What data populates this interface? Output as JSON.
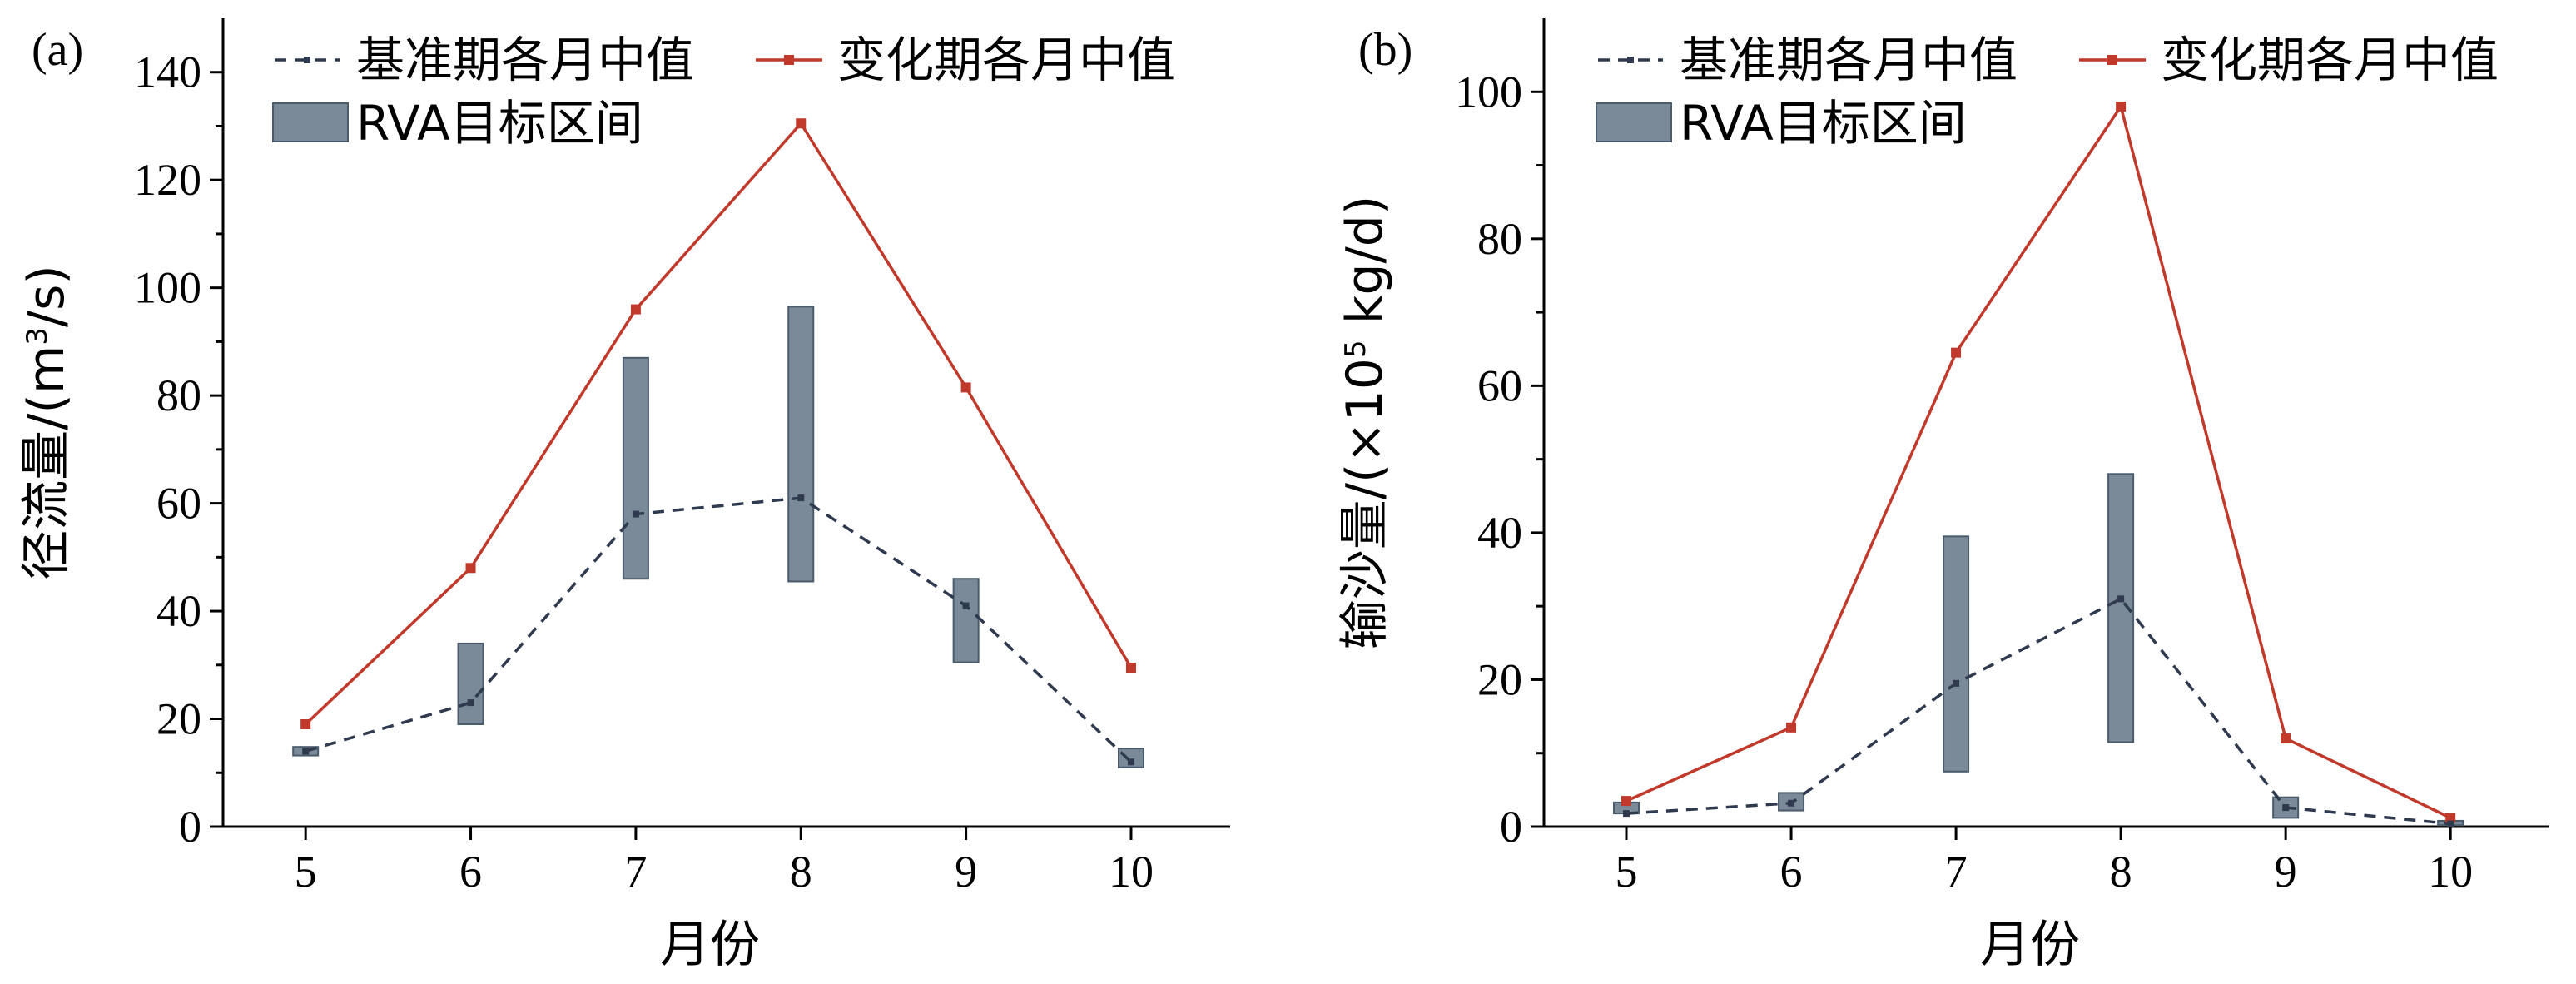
{
  "chart_data": [
    {
      "panel_label": "(a)",
      "type": "line",
      "xlabel": "月份",
      "ylabel": "径流量/(m³/s)",
      "ylabel_parts": [
        "径流量/(m",
        "3",
        "/s)"
      ],
      "x": [
        5,
        6,
        7,
        8,
        9,
        10
      ],
      "ylim": [
        0,
        150
      ],
      "yticks": [
        0,
        20,
        40,
        60,
        80,
        100,
        120,
        140
      ],
      "legend": {
        "baseline": "基准期各月中值",
        "changed": "变化期各月中值",
        "rva": "RVA目标区间"
      },
      "series": [
        {
          "name": "基准期各月中值",
          "values": [
            14,
            23,
            58,
            61,
            41,
            12
          ],
          "color": "#2f3a4f",
          "style": "dashed"
        },
        {
          "name": "变化期各月中值",
          "values": [
            19,
            48,
            96,
            130.5,
            81.5,
            29.5
          ],
          "color": "#c0392b",
          "style": "solid"
        }
      ],
      "rva_range": [
        [
          13.2,
          14.8
        ],
        [
          19,
          34
        ],
        [
          46,
          87
        ],
        [
          45.5,
          96.5
        ],
        [
          30.5,
          46
        ],
        [
          11,
          14.5
        ]
      ]
    },
    {
      "panel_label": "(b)",
      "type": "line",
      "xlabel": "月份",
      "ylabel": "输沙量/(×10⁵ kg/d)",
      "ylabel_parts": [
        "输沙量/(×10",
        "5",
        " kg/d)"
      ],
      "x": [
        5,
        6,
        7,
        8,
        9,
        10
      ],
      "ylim": [
        0,
        110
      ],
      "yticks": [
        0,
        20,
        40,
        60,
        80,
        100
      ],
      "legend": {
        "baseline": "基准期各月中值",
        "changed": "变化期各月中值",
        "rva": "RVA目标区间"
      },
      "series": [
        {
          "name": "基准期各月中值",
          "values": [
            1.8,
            3.2,
            19.5,
            31,
            2.6,
            0.4
          ],
          "color": "#2f3a4f",
          "style": "dashed"
        },
        {
          "name": "变化期各月中值",
          "values": [
            3.5,
            13.5,
            64.5,
            98,
            12,
            1.2
          ],
          "color": "#c0392b",
          "style": "solid"
        }
      ],
      "rva_range": [
        [
          1.8,
          3.3
        ],
        [
          2.2,
          4.6
        ],
        [
          7.5,
          39.5
        ],
        [
          11.5,
          48
        ],
        [
          1.2,
          4
        ],
        [
          0.2,
          0.8
        ]
      ]
    }
  ]
}
